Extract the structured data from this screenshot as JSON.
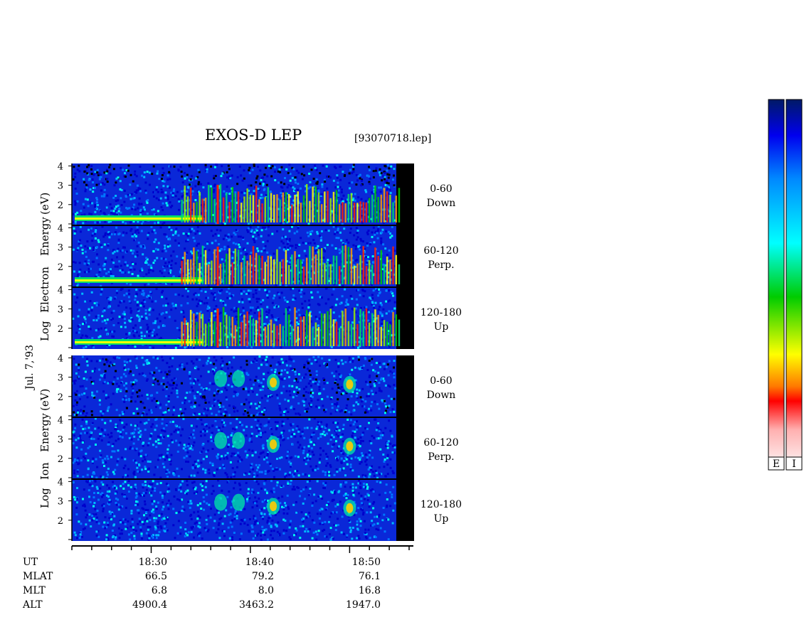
{
  "header": {
    "title": "EXOS-D LEP",
    "filename": "[93070718.lep]"
  },
  "date_label": "Jul. 7,'93",
  "electron_ylabel": [
    "Log",
    "Electron",
    "Energy",
    "(eV)"
  ],
  "ion_ylabel": [
    "Log",
    "Ion",
    "Energy",
    "(eV)"
  ],
  "colorbar": {
    "labels": [
      "E",
      "I"
    ],
    "colors": [
      "#fde5e5",
      "#ff9a9a",
      "#ff0000",
      "#ff9900",
      "#ffff00",
      "#00cc00",
      "#00ffff",
      "#0088ff",
      "#0000ee",
      "#001a66"
    ]
  },
  "time_axis": {
    "row_labels": [
      "UT",
      "MLAT",
      "MLT",
      "ALT"
    ],
    "ticks": [
      "18:30",
      "18:40",
      "18:50"
    ],
    "mlat": [
      "66.5",
      "79.2",
      "76.1"
    ],
    "mlt": [
      "6.8",
      "8.0",
      "16.8"
    ],
    "alt": [
      "4900.4",
      "3463.2",
      "1947.0"
    ]
  },
  "chart_data": {
    "type": "heatmap",
    "title": "EXOS-D LEP",
    "x_axis": {
      "unit": "UT",
      "range": [
        "18:22",
        "18:56"
      ],
      "major_ticks": [
        "18:30",
        "18:40",
        "18:50"
      ],
      "minor_tick_step_minutes": 2
    },
    "y_axis": {
      "label": "Log Energy (eV)",
      "ticks": [
        1,
        2,
        3,
        4
      ],
      "range": [
        1,
        4.2
      ]
    },
    "panels": [
      {
        "species": "Electron",
        "pitch_angle": "0-60",
        "direction": "Down"
      },
      {
        "species": "Electron",
        "pitch_angle": "60-120",
        "direction": "Perp."
      },
      {
        "species": "Electron",
        "pitch_angle": "120-180",
        "direction": "Up"
      },
      {
        "species": "Ion",
        "pitch_angle": "0-60",
        "direction": "Down"
      },
      {
        "species": "Ion",
        "pitch_angle": "60-120",
        "direction": "Perp."
      },
      {
        "species": "Ion",
        "pitch_angle": "120-180",
        "direction": "Up"
      }
    ],
    "colorbar": {
      "labels": [
        "E",
        "I"
      ]
    }
  }
}
